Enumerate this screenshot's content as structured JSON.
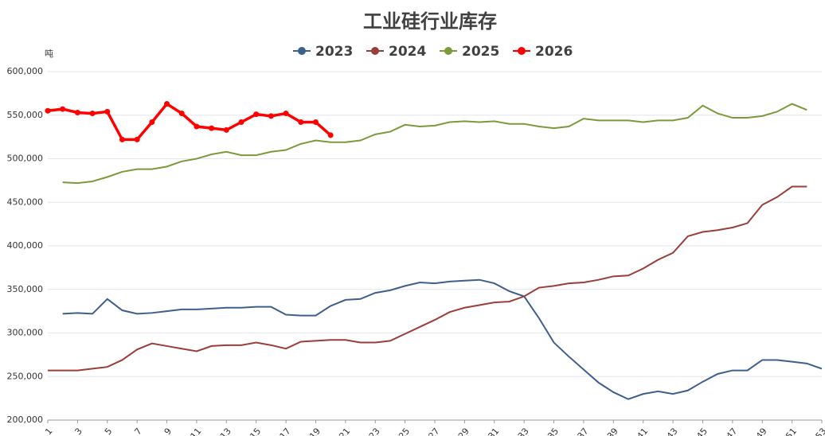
{
  "chart_data": {
    "type": "line",
    "title": "工业硅行业库存",
    "y_unit": "吨",
    "x": [
      1,
      2,
      3,
      4,
      5,
      6,
      7,
      8,
      9,
      10,
      11,
      12,
      13,
      14,
      15,
      16,
      17,
      18,
      19,
      20,
      21,
      22,
      23,
      24,
      25,
      26,
      27,
      28,
      29,
      30,
      31,
      32,
      33,
      34,
      35,
      36,
      37,
      38,
      39,
      40,
      41,
      42,
      43,
      44,
      45,
      46,
      47,
      48,
      49,
      50,
      51,
      52,
      53
    ],
    "xlim": [
      1,
      53
    ],
    "xticks": [
      1,
      3,
      5,
      7,
      9,
      11,
      13,
      15,
      17,
      19,
      21,
      23,
      25,
      27,
      29,
      31,
      33,
      35,
      37,
      39,
      41,
      43,
      45,
      47,
      49,
      51,
      53
    ],
    "ylim": [
      200000,
      600000
    ],
    "yticks": [
      {
        "value": 200000,
        "label": "200,000"
      },
      {
        "value": 250000,
        "label": "250,000"
      },
      {
        "value": 300000,
        "label": "300,000"
      },
      {
        "value": 350000,
        "label": "350,000"
      },
      {
        "value": 400000,
        "label": "400,000"
      },
      {
        "value": 450000,
        "label": "450,000"
      },
      {
        "value": 500000,
        "label": "500,000"
      },
      {
        "value": 550000,
        "label": "550,000"
      },
      {
        "value": 600000,
        "label": "600,000"
      }
    ],
    "grid": true,
    "legend": "top",
    "series": [
      {
        "name": "2023",
        "color": "#3d5f8c",
        "markers": false,
        "values": [
          null,
          322000,
          323000,
          322000,
          339000,
          326000,
          322000,
          323000,
          325000,
          327000,
          327000,
          328000,
          329000,
          329000,
          330000,
          330000,
          321000,
          320000,
          320000,
          331000,
          338000,
          339000,
          346000,
          349000,
          354000,
          358000,
          357000,
          359000,
          360000,
          361000,
          357000,
          348000,
          342000,
          317000,
          289000,
          273000,
          258000,
          243000,
          232000,
          224000,
          230000,
          233000,
          230000,
          234000,
          244000,
          253000,
          257000,
          257000,
          269000,
          269000,
          267000,
          265000,
          259000
        ]
      },
      {
        "name": "2024",
        "color": "#9b3d3a",
        "markers": false,
        "values": [
          257000,
          257000,
          257000,
          259000,
          261000,
          269000,
          281000,
          288000,
          285000,
          282000,
          279000,
          285000,
          286000,
          286000,
          289000,
          286000,
          282000,
          290000,
          291000,
          292000,
          292000,
          289000,
          289000,
          291000,
          299000,
          307000,
          315000,
          324000,
          329000,
          332000,
          335000,
          336000,
          342000,
          352000,
          354000,
          357000,
          358000,
          361000,
          365000,
          366000,
          374000,
          384000,
          392000,
          411000,
          416000,
          418000,
          421000,
          426000,
          447000,
          456000,
          468000,
          468000,
          null
        ]
      },
      {
        "name": "2025",
        "color": "#7a9a3c",
        "markers": false,
        "values": [
          null,
          473000,
          472000,
          474000,
          479000,
          485000,
          488000,
          488000,
          491000,
          497000,
          500000,
          505000,
          508000,
          504000,
          504000,
          508000,
          510000,
          517000,
          521000,
          519000,
          519000,
          521000,
          528000,
          531000,
          539000,
          537000,
          538000,
          542000,
          543000,
          542000,
          543000,
          540000,
          540000,
          537000,
          535000,
          537000,
          546000,
          544000,
          544000,
          544000,
          542000,
          544000,
          544000,
          547000,
          561000,
          552000,
          547000,
          547000,
          549000,
          554000,
          563000,
          556000,
          null
        ]
      },
      {
        "name": "2026",
        "color": "#ff0000",
        "markers": true,
        "values": [
          555000,
          557000,
          553000,
          552000,
          554000,
          522000,
          522000,
          542000,
          563000,
          552000,
          537000,
          535000,
          533000,
          542000,
          551000,
          549000,
          552000,
          542000,
          542000,
          527000,
          null,
          null,
          null,
          null,
          null,
          null,
          null,
          null,
          null,
          null,
          null,
          null,
          null,
          null,
          null,
          null,
          null,
          null,
          null,
          null,
          null,
          null,
          null,
          null,
          null,
          null,
          null,
          null,
          null,
          null,
          null,
          null,
          null
        ]
      }
    ]
  }
}
